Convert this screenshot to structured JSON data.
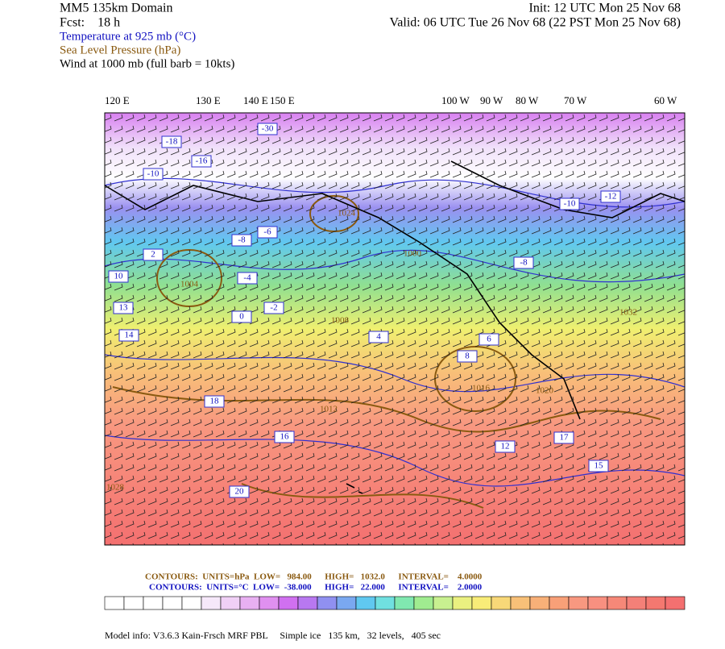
{
  "header": {
    "domain": "MM5 135km Domain",
    "forecast": "Fcst:    18 h",
    "init": "Init: 12 UTC Mon 25 Nov 68",
    "valid": "Valid: 06 UTC Tue 26 Nov 68 (22 PST Mon 25 Nov 68)",
    "fields": [
      {
        "text": "Temperature at 925 mb (°C)",
        "color": "#1010c0"
      },
      {
        "text": "Sea Level Pressure (hPa)",
        "color": "#8a5a10"
      },
      {
        "text": "Wind at 1000 mb (full barb = 10kts)",
        "color": "#000000"
      }
    ]
  },
  "map": {
    "longitude_labels": [
      "120 E",
      "130 E",
      "140 E",
      "150 E",
      "100 W",
      "90 W",
      "80 W",
      "70 W",
      "60 W"
    ],
    "temperature_labels": [
      "-30",
      "-18",
      "-16",
      "-10",
      "-8",
      "-6",
      "-4",
      "-2",
      "0",
      "2",
      "4",
      "6",
      "8",
      "10",
      "12",
      "13",
      "14",
      "15",
      "16",
      "18",
      "20",
      "-12",
      "-10",
      "-8",
      "17"
    ],
    "pressure_labels": [
      "1000",
      "1004",
      "1008",
      "1012",
      "1016",
      "1020",
      "1024",
      "1028",
      "1032"
    ]
  },
  "legend": {
    "pressure": "CONTOURS:  UNITS=hPa  LOW=   984.00      HIGH=   1032.0      INTERVAL=    4.0000",
    "temperature": "CONTOURS:  UNITS=°C  LOW=  -38.000      HIGH=   22.000      INTERVAL=    2.0000",
    "colorbar": [
      "#ffffff",
      "#ffffff",
      "#ffffff",
      "#ffffff",
      "#ffffff",
      "#f6e8fa",
      "#f0d0f6",
      "#e8b0f2",
      "#e090f0",
      "#d070f0",
      "#b878f0",
      "#9090f0",
      "#7aa8f0",
      "#60c8f0",
      "#70e0e0",
      "#80e8b0",
      "#a0ec90",
      "#c8f090",
      "#eaf080",
      "#f8ec78",
      "#f8d878",
      "#f8c078",
      "#f8b078",
      "#f8a078",
      "#f89880",
      "#f89080",
      "#f68878",
      "#f48078",
      "#f47870",
      "#f47070"
    ]
  },
  "footer": "Model info: V3.6.3 Kain-Frsch MRF PBL     Simple ice   135 km,   32 levels,   405 sec"
}
